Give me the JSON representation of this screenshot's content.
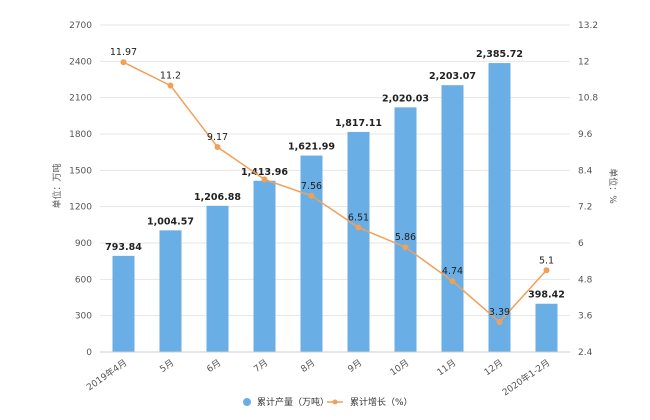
{
  "chart_data": {
    "type": "bar+line",
    "categories": [
      "2019年4月",
      "5月",
      "6月",
      "7月",
      "8月",
      "9月",
      "10月",
      "11月",
      "12月",
      "2020年1-2月"
    ],
    "series": [
      {
        "name": "累计产量（万吨）",
        "type": "bar",
        "axis": "left",
        "color": "#6aaee6",
        "values": [
          793.84,
          1004.57,
          1206.88,
          1413.96,
          1621.99,
          1817.11,
          2020.03,
          2203.07,
          2385.72,
          398.42
        ],
        "labels": [
          "793.84",
          "1,004.57",
          "1,206.88",
          "1,413.96",
          "1,621.99",
          "1,817.11",
          "2,020.03",
          "2,203.07",
          "2,385.72",
          "398.42"
        ]
      },
      {
        "name": "累计增长（%）",
        "type": "line",
        "axis": "right",
        "color": "#f0a05a",
        "values": [
          11.97,
          11.2,
          9.17,
          8.1,
          7.56,
          6.51,
          5.86,
          4.74,
          3.39,
          5.1
        ],
        "labels": [
          "11.97",
          "11.2",
          "9.17",
          "",
          "7.56",
          "6.51",
          "5.86",
          "4.74",
          "3.39",
          "5.1"
        ]
      }
    ],
    "y_left": {
      "label": "单位：万吨",
      "range": [
        0,
        2700
      ],
      "ticks": [
        0,
        300,
        600,
        900,
        1200,
        1500,
        1800,
        2100,
        2400,
        2700
      ]
    },
    "y_right": {
      "label": "单位：%",
      "range": [
        2.4,
        13.2
      ],
      "ticks": [
        "2.4",
        "3.6",
        "4.8",
        "6",
        "7.2",
        "8.4",
        "9.6",
        "10.8",
        "12",
        "13.2"
      ]
    },
    "grid": true,
    "legend": "bottom"
  }
}
